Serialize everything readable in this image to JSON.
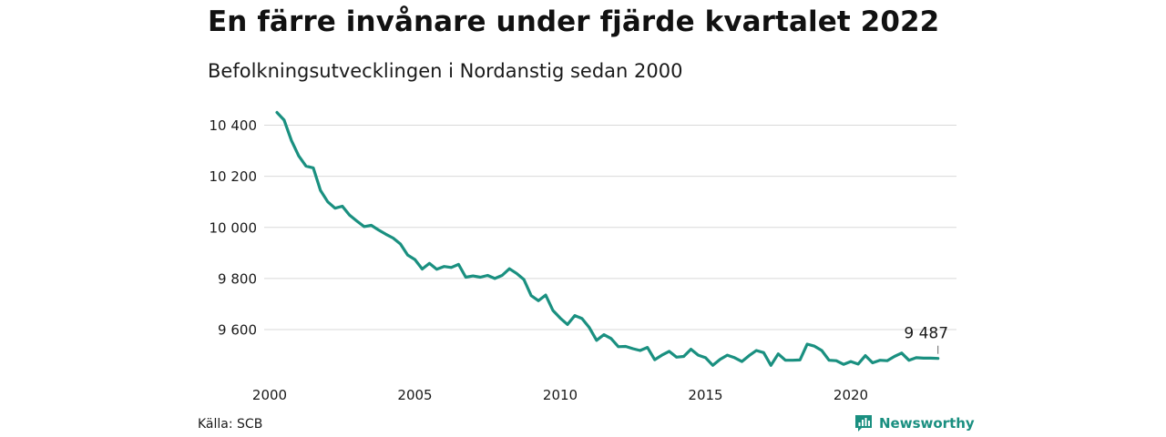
{
  "header": {
    "title": "En färre invånare under fjärde kvartalet 2022",
    "subtitle": "Befolkningsutvecklingen i Nordanstig sedan 2000"
  },
  "footer": {
    "source": "Källa: SCB",
    "brand": "Newsworthy"
  },
  "colors": {
    "line": "#1a9080",
    "grid": "#d9d9d9",
    "brand": "#1a8f80"
  },
  "chart_data": {
    "type": "line",
    "title": "En färre invånare under fjärde kvartalet 2022",
    "subtitle": "Befolkningsutvecklingen i Nordanstig sedan 2000",
    "xlabel": "",
    "ylabel": "",
    "x_ticks": [
      2000,
      2005,
      2010,
      2015,
      2020
    ],
    "x_tick_labels": [
      "2000",
      "2005",
      "2010",
      "2015",
      "2020"
    ],
    "y_ticks": [
      9600,
      9800,
      10000,
      10200,
      10400
    ],
    "y_tick_labels": [
      "9 600",
      "9 800",
      "10 000",
      "10 200",
      "10 400"
    ],
    "xlim": [
      2000,
      2023.3
    ],
    "ylim": [
      9440,
      10480
    ],
    "grid": "horizontal",
    "legend": "none",
    "end_label": "9 487",
    "series": [
      {
        "x": [
          2000.25,
          2000.5,
          2000.75,
          2001.0,
          2001.25,
          2001.5,
          2001.75,
          2002.0,
          2002.25,
          2002.5,
          2002.75,
          2003.0,
          2003.25,
          2003.5,
          2003.75,
          2004.0,
          2004.25,
          2004.5,
          2004.75,
          2005.0,
          2005.25,
          2005.5,
          2005.75,
          2006.0,
          2006.25,
          2006.5,
          2006.75,
          2007.0,
          2007.25,
          2007.5,
          2007.75,
          2008.0,
          2008.25,
          2008.5,
          2008.75,
          2009.0,
          2009.25,
          2009.5,
          2009.75,
          2010.0,
          2010.25,
          2010.5,
          2010.75,
          2011.0,
          2011.25,
          2011.5,
          2011.75,
          2012.0,
          2012.25,
          2012.5,
          2012.75,
          2013.0,
          2013.25,
          2013.5,
          2013.75,
          2014.0,
          2014.25,
          2014.5,
          2014.75,
          2015.0,
          2015.25,
          2015.5,
          2015.75,
          2016.0,
          2016.25,
          2016.5,
          2016.75,
          2017.0,
          2017.25,
          2017.5,
          2017.75,
          2018.0,
          2018.25,
          2018.5,
          2018.75,
          2019.0,
          2019.25,
          2019.5,
          2019.75,
          2020.0,
          2020.25,
          2020.5,
          2020.75,
          2021.0,
          2021.25,
          2021.5,
          2021.75,
          2022.0,
          2022.25,
          2022.5,
          2022.75,
          2023.0
        ],
        "values": [
          10450,
          10420,
          10340,
          10280,
          10240,
          10233,
          10145,
          10100,
          10075,
          10083,
          10048,
          10025,
          10003,
          10008,
          9990,
          9973,
          9958,
          9935,
          9892,
          9874,
          9837,
          9859,
          9836,
          9847,
          9843,
          9855,
          9805,
          9810,
          9805,
          9812,
          9800,
          9812,
          9838,
          9820,
          9796,
          9733,
          9713,
          9735,
          9675,
          9645,
          9620,
          9655,
          9643,
          9608,
          9558,
          9580,
          9565,
          9533,
          9534,
          9525,
          9518,
          9530,
          9482,
          9500,
          9515,
          9492,
          9495,
          9523,
          9500,
          9490,
          9460,
          9483,
          9500,
          9490,
          9475,
          9498,
          9518,
          9510,
          9460,
          9505,
          9480,
          9480,
          9481,
          9543,
          9535,
          9518,
          9480,
          9478,
          9464,
          9475,
          9465,
          9498,
          9470,
          9480,
          9478,
          9495,
          9508,
          9480,
          9490,
          9488,
          9488,
          9487
        ]
      }
    ]
  }
}
